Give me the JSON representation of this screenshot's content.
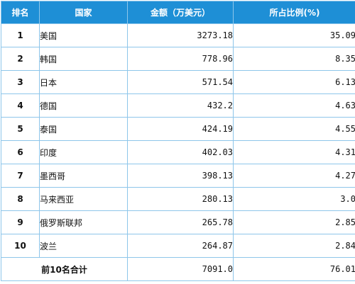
{
  "header": {
    "rank": "排名",
    "country": "国家",
    "amount": "金额（万美元）",
    "share": "所占比例(%)"
  },
  "rows": [
    {
      "rank": "1",
      "country": "美国",
      "amount": "3273.18",
      "share": "35.09"
    },
    {
      "rank": "2",
      "country": "韩国",
      "amount": "778.96",
      "share": "8.35"
    },
    {
      "rank": "3",
      "country": "日本",
      "amount": "571.54",
      "share": "6.13"
    },
    {
      "rank": "4",
      "country": "德国",
      "amount": "432.2",
      "share": "4.63"
    },
    {
      "rank": "5",
      "country": "泰国",
      "amount": "424.19",
      "share": "4.55"
    },
    {
      "rank": "6",
      "country": "印度",
      "amount": "402.03",
      "share": "4.31"
    },
    {
      "rank": "7",
      "country": "墨西哥",
      "amount": "398.13",
      "share": "4.27"
    },
    {
      "rank": "8",
      "country": "马来西亚",
      "amount": "280.13",
      "share": "3.0"
    },
    {
      "rank": "9",
      "country": "俄罗斯联邦",
      "amount": "265.78",
      "share": "2.85"
    },
    {
      "rank": "10",
      "country": "波兰",
      "amount": "264.87",
      "share": "2.84"
    }
  ],
  "total": {
    "label": "前10名合计",
    "amount": "7091.0",
    "share": "76.01"
  },
  "colors": {
    "header_bg": "#1e8fd6",
    "border": "#8ec6ea"
  }
}
